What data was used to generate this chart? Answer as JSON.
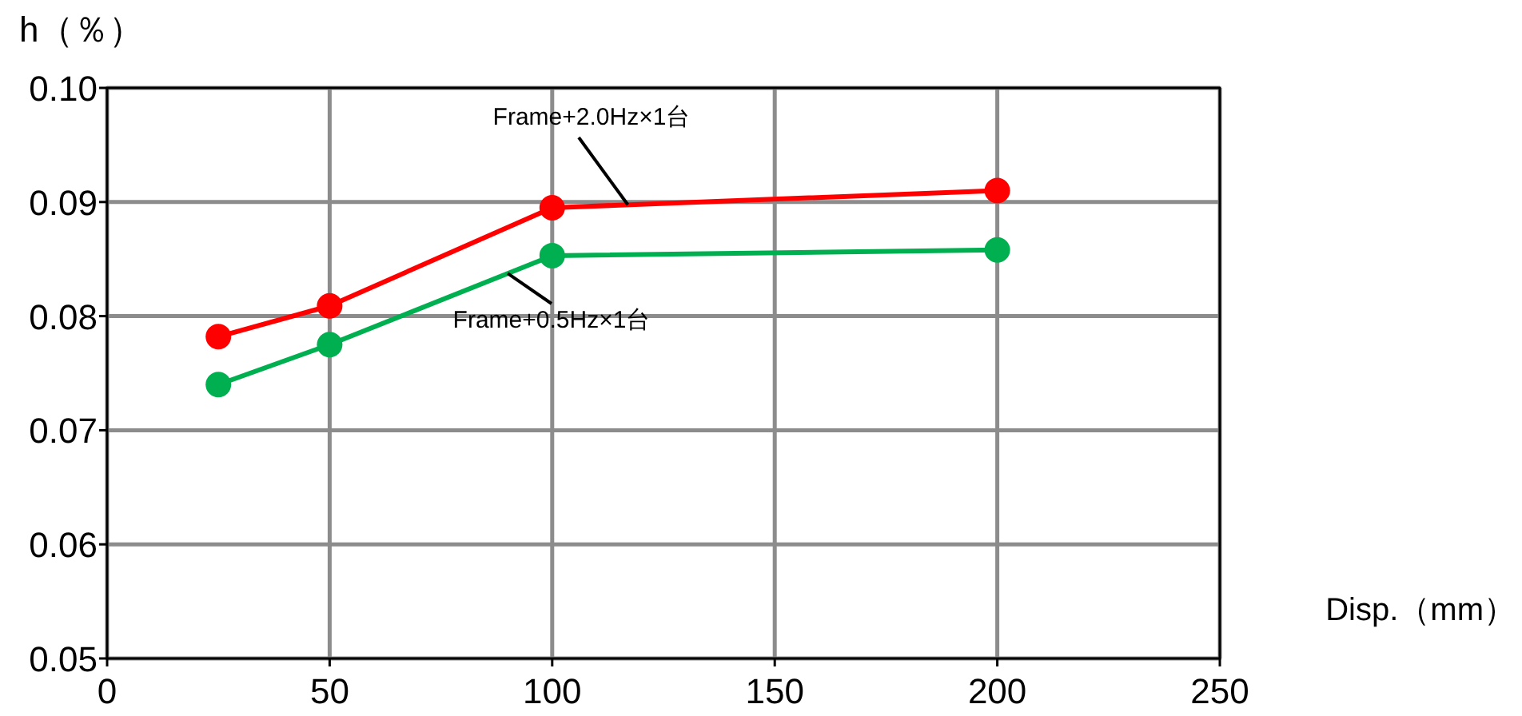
{
  "chart_data": {
    "type": "line",
    "ylabel": "h（％）",
    "xlabel": "Disp.（mm）",
    "x": [
      25,
      50,
      100,
      200
    ],
    "series": [
      {
        "name": "Frame+2.0Hz×1台",
        "color": "#ff0000",
        "values": [
          0.0782,
          0.0809,
          0.0895,
          0.091
        ]
      },
      {
        "name": "Frame+0.5Hz×1台",
        "color": "#00b050",
        "values": [
          0.074,
          0.0775,
          0.0853,
          0.0858
        ]
      }
    ],
    "xlim": [
      0,
      250
    ],
    "xticks": [
      0,
      50,
      100,
      150,
      200,
      250
    ],
    "ylim": [
      0.05,
      0.1
    ],
    "yticks": [
      0.05,
      0.06,
      0.07,
      0.08,
      0.09,
      {
        "value": 0.1,
        "label": "0.10"
      }
    ],
    "grid": true,
    "marker": "circle",
    "line_style": "solid"
  }
}
